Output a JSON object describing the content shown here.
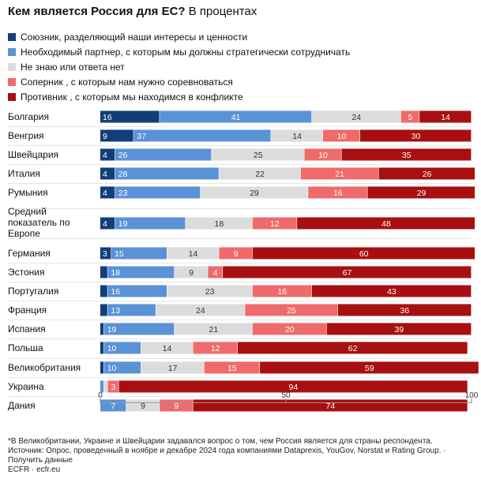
{
  "title": {
    "bold": "Кем является Россия для ЕС?",
    "sub": "В процентах"
  },
  "colors": {
    "ally": "#123e7a",
    "partner": "#5a92d6",
    "dontknow": "#dcdcdc",
    "rival": "#ef6b6b",
    "adversary": "#a80f10"
  },
  "chart_data": {
    "type": "bar",
    "orientation": "horizontal",
    "stacked": true,
    "xlim": [
      0,
      100
    ],
    "xticks": [
      "0",
      "50",
      "100"
    ],
    "legend_position": "top",
    "categories": [
      "Болгария",
      "Венгрия",
      "Швейцария",
      "Италия",
      "Румыния",
      "Средний показатель по Европе",
      "Германия",
      "Эстония",
      "Португалия",
      "Франция",
      "Испания",
      "Польша",
      "Великобритания",
      "Украина",
      "Дания"
    ],
    "series": [
      {
        "name": "Союзник, разделяющий наши интересы и ценности",
        "key": "ally",
        "values": [
          16,
          9,
          4,
          4,
          4,
          4,
          3,
          2,
          2,
          2,
          1,
          1,
          1,
          0,
          0
        ]
      },
      {
        "name": "Необходимый партнер, с которым мы должны стратегически сотрудничать",
        "key": "partner",
        "values": [
          41,
          37,
          26,
          28,
          23,
          19,
          15,
          18,
          16,
          13,
          19,
          10,
          10,
          1,
          7
        ]
      },
      {
        "name": "Не знаю или ответа нет",
        "key": "dontknow",
        "values": [
          24,
          14,
          25,
          22,
          29,
          18,
          14,
          9,
          23,
          24,
          21,
          14,
          17,
          1,
          9
        ]
      },
      {
        "name": "Соперник , с которым нам нужно соревноваться",
        "key": "rival",
        "values": [
          5,
          10,
          10,
          21,
          16,
          12,
          9,
          4,
          16,
          25,
          20,
          12,
          15,
          3,
          9
        ]
      },
      {
        "name": "Противник , с которым мы находимся в конфликте",
        "key": "adversary",
        "values": [
          14,
          30,
          35,
          26,
          29,
          48,
          60,
          67,
          43,
          36,
          39,
          62,
          59,
          94,
          74
        ]
      }
    ],
    "shown_labels": [
      [
        16,
        41,
        24,
        5,
        14
      ],
      [
        9,
        37,
        14,
        10,
        30
      ],
      [
        4,
        26,
        25,
        10,
        35
      ],
      [
        4,
        28,
        22,
        21,
        26
      ],
      [
        4,
        23,
        29,
        16,
        29
      ],
      [
        4,
        19,
        18,
        12,
        48
      ],
      [
        3,
        15,
        14,
        9,
        60
      ],
      [
        null,
        18,
        9,
        4,
        67
      ],
      [
        null,
        16,
        23,
        16,
        43
      ],
      [
        null,
        13,
        24,
        25,
        36
      ],
      [
        null,
        19,
        21,
        20,
        39
      ],
      [
        null,
        10,
        14,
        12,
        62
      ],
      [
        null,
        10,
        17,
        15,
        59
      ],
      [
        null,
        null,
        null,
        3,
        94
      ],
      [
        null,
        7,
        9,
        9,
        74
      ]
    ]
  },
  "footnote": {
    "note": "*В Великобритании, Украине и Швейцарии задавался вопрос о том, чем Россия является для страны респондента.",
    "source": "Источник: Опрос, проведенный в ноябре и декабре 2024 года компаниями Dataprexis, YouGov, Norstat и Rating Group. · Получить данные",
    "site": "ECFR · ecfr.eu"
  }
}
